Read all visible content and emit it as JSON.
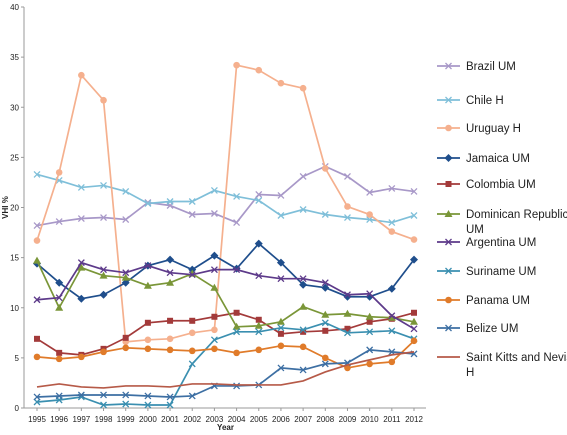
{
  "chart_data": {
    "type": "line",
    "title": "",
    "xlabel": "Year",
    "ylabel": "VHI %",
    "ylim": [
      0,
      40
    ],
    "yticks": [
      0,
      5,
      10,
      15,
      20,
      25,
      30,
      35,
      40
    ],
    "x": [
      "1995",
      "1996",
      "1997",
      "1998",
      "1999",
      "2000",
      "2001",
      "2002",
      "2003",
      "2004",
      "2005",
      "2006",
      "2007",
      "2008",
      "2009",
      "2010",
      "2011",
      "2012"
    ],
    "grid": false,
    "legend": "right",
    "series": [
      {
        "name": "Brazil UM",
        "color": "#a898c8",
        "marker": "x",
        "values": [
          18.2,
          18.6,
          18.9,
          19.0,
          18.8,
          20.5,
          20.2,
          19.3,
          19.4,
          18.5,
          21.3,
          21.2,
          23.1,
          24.1,
          23.1,
          21.5,
          21.9,
          21.6
        ]
      },
      {
        "name": "Chile H",
        "color": "#7fbfd9",
        "marker": "x",
        "values": [
          23.3,
          22.7,
          22.0,
          22.2,
          21.6,
          20.4,
          20.6,
          20.6,
          21.7,
          21.1,
          20.7,
          19.2,
          19.8,
          19.3,
          19.0,
          18.8,
          18.5,
          19.2
        ]
      },
      {
        "name": "Uruguay H",
        "color": "#f5b08e",
        "marker": "circle",
        "values": [
          16.7,
          23.5,
          33.2,
          30.7,
          6.6,
          6.8,
          6.9,
          7.5,
          7.8,
          34.2,
          33.7,
          32.4,
          31.9,
          23.9,
          20.1,
          19.3,
          17.6,
          16.8
        ]
      },
      {
        "name": "Jamaica UM",
        "color": "#1f4e8c",
        "marker": "diamond",
        "values": [
          14.4,
          12.5,
          10.9,
          11.3,
          12.5,
          14.2,
          14.8,
          13.8,
          15.2,
          13.9,
          16.4,
          14.5,
          12.3,
          12.0,
          11.1,
          11.1,
          11.9,
          14.8
        ]
      },
      {
        "name": "Colombia UM",
        "color": "#a33a3a",
        "marker": "square",
        "values": [
          6.9,
          5.5,
          5.3,
          5.9,
          7.0,
          8.5,
          8.7,
          8.7,
          9.1,
          9.5,
          8.8,
          7.4,
          7.6,
          7.7,
          7.9,
          8.6,
          8.9,
          9.5
        ]
      },
      {
        "name": "Dominican Republic UM",
        "color": "#7a9638",
        "marker": "triangle",
        "values": [
          14.7,
          10.0,
          14.0,
          13.2,
          13.0,
          12.2,
          12.5,
          13.4,
          12.0,
          8.1,
          8.2,
          8.6,
          10.1,
          9.3,
          9.4,
          9.1,
          9.0,
          8.6
        ]
      },
      {
        "name": "Argentina UM",
        "color": "#5d3a8a",
        "marker": "x",
        "values": [
          10.8,
          11.0,
          14.5,
          13.8,
          13.5,
          14.2,
          13.5,
          13.3,
          13.8,
          13.8,
          13.2,
          12.9,
          12.9,
          12.5,
          11.3,
          11.4,
          9.2,
          7.9
        ]
      },
      {
        "name": "Suriname UM",
        "color": "#3a8fb0",
        "marker": "x",
        "values": [
          0.6,
          0.8,
          1.1,
          0.3,
          0.4,
          0.3,
          0.3,
          4.4,
          6.8,
          7.6,
          7.6,
          8.0,
          7.8,
          8.5,
          7.5,
          7.6,
          7.7,
          6.9
        ]
      },
      {
        "name": "Panama UM",
        "color": "#e07b2a",
        "marker": "circle",
        "values": [
          5.1,
          4.9,
          5.1,
          5.6,
          6.0,
          5.9,
          5.8,
          5.7,
          5.9,
          5.5,
          5.8,
          6.2,
          6.1,
          5.0,
          4.0,
          4.4,
          4.6,
          6.7
        ]
      },
      {
        "name": "Belize UM",
        "color": "#3d6fa3",
        "marker": "x",
        "values": [
          1.1,
          1.2,
          1.3,
          1.3,
          1.3,
          1.2,
          1.1,
          1.2,
          2.2,
          2.2,
          2.3,
          4.0,
          3.8,
          4.4,
          4.5,
          5.8,
          5.6,
          5.4
        ]
      },
      {
        "name": "Saint Kitts and Nevis H",
        "color": "#b65a48",
        "marker": "none",
        "values": [
          2.1,
          2.4,
          2.1,
          2.0,
          2.2,
          2.2,
          2.1,
          2.4,
          2.4,
          2.3,
          2.3,
          2.3,
          2.7,
          3.6,
          4.3,
          4.8,
          5.3,
          5.6
        ]
      }
    ]
  }
}
